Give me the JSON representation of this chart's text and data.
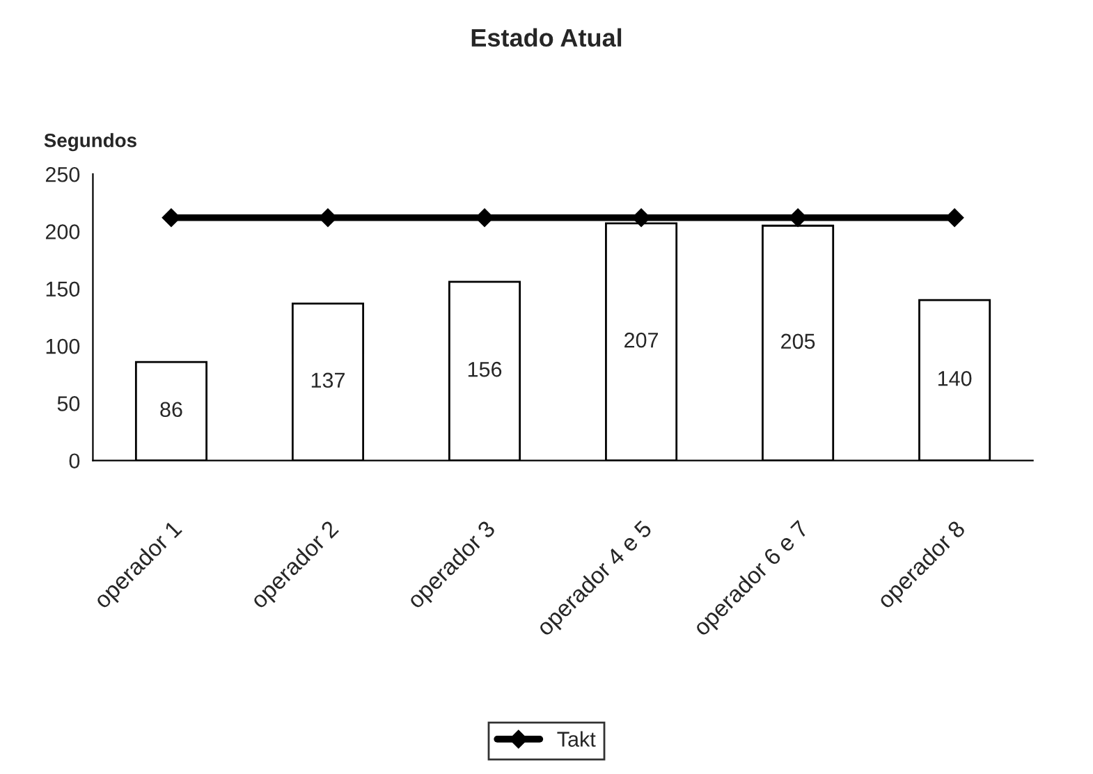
{
  "chart_data": {
    "type": "bar",
    "title": "Estado Atual",
    "ylabel": "Segundos",
    "categories": [
      "operador 1",
      "operador 2",
      "operador 3",
      "operador 4 e 5",
      "operador 6 e 7",
      "operador 8"
    ],
    "series": [
      {
        "color": "#ffffff",
        "values": [
          86,
          137,
          156,
          207,
          205,
          140
        ],
        "value_labels": [
          "86",
          "137",
          "156",
          "207",
          "205",
          "140"
        ]
      },
      {
        "type": "line",
        "name": "Takt",
        "color": "#000000",
        "values": [
          212,
          212,
          212,
          212,
          212,
          212
        ],
        "marker": "diamond",
        "line_style": "solid"
      }
    ],
    "ylim": [
      0,
      250
    ],
    "yticks": [
      0,
      50,
      100,
      150,
      200,
      250
    ],
    "grid": false,
    "legend": "bottom"
  }
}
